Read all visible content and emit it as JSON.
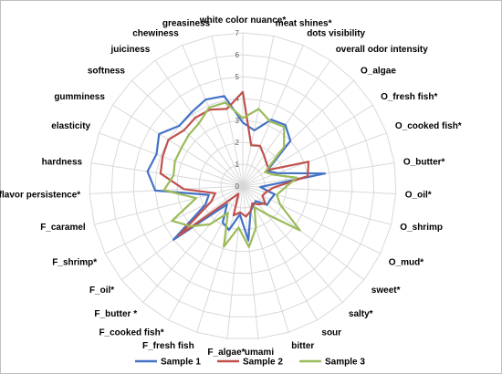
{
  "chart_data": {
    "type": "radar",
    "categories": [
      "white color nuance*",
      "meat shines*",
      "dots visibility",
      "overall odor intensity",
      "O_algae",
      "O_fresh fish*",
      "O_cooked fish*",
      "O_butter*",
      "O_oil*",
      "O_shrimp",
      "O_mud*",
      "sweet*",
      "salty*",
      "sour",
      "bitter",
      "umami",
      "F_algae*",
      "F_fresh fish",
      "F_cooked fish*",
      "F_butter *",
      "F_oil*",
      "F_shrimp*",
      "F_caramel",
      "flavor persistence*",
      "hardness",
      "elasticity",
      "gumminess",
      "softness",
      "juiciness",
      "chewiness",
      "greasiness"
    ],
    "rlim": [
      0,
      7
    ],
    "ticks": [
      "0",
      "1",
      "2",
      "3",
      "4",
      "5",
      "6",
      "7"
    ],
    "grid": true,
    "legend_position": "bottom",
    "series": [
      {
        "name": "Sample 1",
        "color": "#4472c4",
        "values": [
          2.9,
          2.6,
          3.3,
          3.4,
          3.0,
          1.3,
          1.7,
          3.8,
          0.8,
          1.5,
          1.4,
          1.4,
          0.9,
          1.0,
          1.2,
          2.5,
          1.3,
          2.1,
          1.9,
          1.1,
          4.0,
          1.9,
          1.6,
          4.0,
          4.4,
          4.2,
          4.5,
          4.0,
          4.1,
          4.3,
          4.2
        ]
      },
      {
        "name": "Sample 2",
        "color": "#c0504d",
        "values": [
          4.3,
          1.9,
          2.0,
          1.7,
          1.5,
          1.4,
          3.2,
          3.0,
          1.4,
          1.1,
          1.0,
          1.3,
          1.1,
          0.9,
          1.2,
          1.4,
          1.2,
          1.4,
          0.4,
          0.7,
          3.7,
          1.6,
          1.3,
          2.7,
          3.8,
          3.9,
          4.0,
          3.7,
          3.8,
          3.8,
          3.6
        ]
      },
      {
        "name": "Sample 3",
        "color": "#9bbb59",
        "values": [
          3.1,
          3.6,
          3.2,
          3.3,
          2.6,
          1.2,
          1.5,
          2.5,
          1.9,
          1.6,
          1.9,
          3.3,
          1.7,
          1.1,
          2.0,
          2.8,
          1.9,
          2.9,
          1.4,
          2.3,
          3.0,
          3.6,
          2.2,
          3.6,
          3.2,
          3.3,
          3.3,
          3.4,
          3.5,
          3.9,
          3.9
        ]
      }
    ]
  }
}
